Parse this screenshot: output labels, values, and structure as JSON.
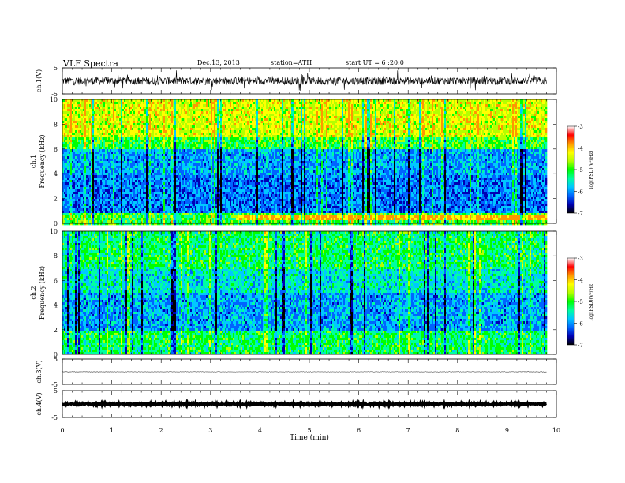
{
  "header": {
    "title": "VLF  Spectra",
    "date": "Dec.13, 2013",
    "station": "station=ATH",
    "start": "start  UT  =   6  :20:0"
  },
  "colors": {
    "scale": [
      "#000000",
      "#0000b4",
      "#0064ff",
      "#00c8ff",
      "#00ffa0",
      "#00ff00",
      "#b4ff00",
      "#ffff00",
      "#ff9600",
      "#ff0000",
      "#ffffff"
    ]
  },
  "chart_data": [
    {
      "type": "line",
      "panel": "ch1",
      "ylabel": "ch.1(V)",
      "ylim": [
        -5,
        5
      ],
      "yticks": [
        "5",
        "-5"
      ],
      "description_values": {
        "mean": 0.0,
        "noise_amplitude": 1.5
      }
    },
    {
      "type": "heatmap",
      "panel": "ch1-spectrogram",
      "ylabel_line1": "ch.1",
      "ylabel_line2": "Frequency (kHz)",
      "ylim": [
        0,
        10
      ],
      "yticks": [
        "0",
        "2",
        "4",
        "6",
        "8",
        "10"
      ],
      "zlabel": "log(PSD)(V²/Hz)",
      "zlim": [
        -7,
        -3
      ],
      "zticks": [
        "-3",
        "-4",
        "-5",
        "-6",
        "-7"
      ]
    },
    {
      "type": "heatmap",
      "panel": "ch2-spectrogram",
      "ylabel_line1": "ch.2",
      "ylabel_line2": "Frequency (kHz)",
      "ylim": [
        0,
        10
      ],
      "yticks": [
        "0",
        "2",
        "4",
        "6",
        "8",
        "10"
      ],
      "zlabel": "log(PSD)(V²/Hz)",
      "zlim": [
        -7,
        -3
      ],
      "zticks": [
        "-3",
        "-4",
        "-5",
        "-6",
        "-7"
      ]
    },
    {
      "type": "line",
      "panel": "ch3",
      "ylabel": "ch.3(V)",
      "ylim": [
        -5,
        5
      ],
      "yticks": [
        "5",
        "-5"
      ],
      "description_values": {
        "mean": 0.0,
        "noise_amplitude": 0.1
      }
    },
    {
      "type": "line",
      "panel": "ch4",
      "ylabel": "ch.4(V)",
      "ylim": [
        -5,
        5
      ],
      "yticks": [
        "5",
        "-5"
      ],
      "description_values": {
        "mean": 0.0,
        "noise_amplitude": 0.3
      }
    }
  ],
  "xaxis": {
    "label": "Time  (min)",
    "xlim": [
      0,
      10
    ],
    "ticks": [
      "0",
      "1",
      "2",
      "3",
      "4",
      "5",
      "6",
      "7",
      "8",
      "9",
      "10"
    ],
    "data_end": 9.8
  }
}
